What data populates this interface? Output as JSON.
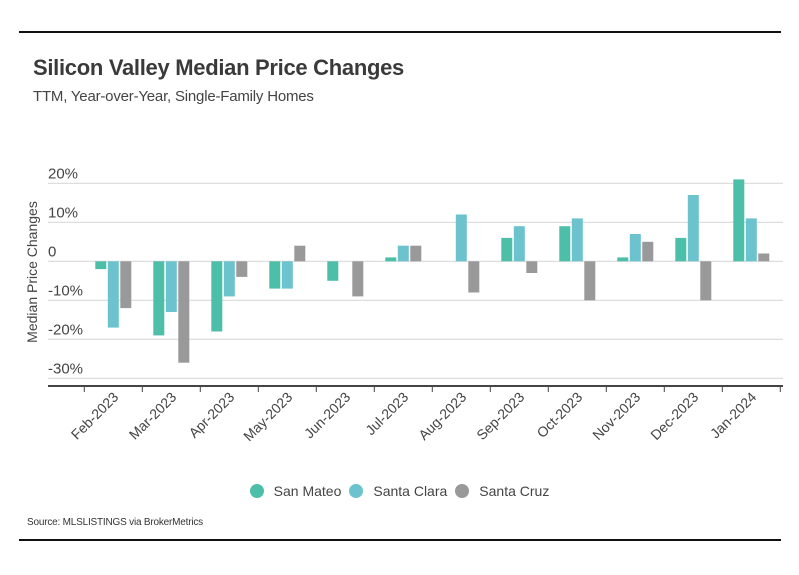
{
  "header": {
    "title": "Silicon Valley Median Price Changes",
    "subtitle": "TTM, Year-over-Year, Single-Family Homes"
  },
  "footer": {
    "source": "Source:  MLSLISTINGS via BrokerMetrics"
  },
  "chart_data": {
    "type": "bar",
    "title": "Silicon Valley Median Price Changes",
    "subtitle": "TTM, Year-over-Year, Single-Family Homes",
    "xlabel": "",
    "ylabel": "Median Price Changes",
    "ylim": [
      -30,
      20
    ],
    "yticks": [
      20,
      10,
      0,
      -10,
      -20,
      -30
    ],
    "ytick_labels": [
      "20%",
      "10%",
      "0",
      "-10%",
      "-20%",
      "-30%"
    ],
    "grid": true,
    "legend_position": "bottom",
    "categories": [
      "Feb-2023",
      "Mar-2023",
      "Apr-2023",
      "May-2023",
      "Jun-2023",
      "Jul-2023",
      "Aug-2023",
      "Sep-2023",
      "Oct-2023",
      "Nov-2023",
      "Dec-2023",
      "Jan-2024"
    ],
    "series": [
      {
        "name": "San Mateo",
        "color": "#4DBFA9",
        "values": [
          -2,
          -19,
          -18,
          -7,
          -5,
          1,
          0,
          6,
          9,
          1,
          6,
          21
        ]
      },
      {
        "name": "Santa Clara",
        "color": "#6CC3CD",
        "values": [
          -17,
          -13,
          -9,
          -7,
          0,
          4,
          12,
          9,
          11,
          7,
          17,
          11
        ]
      },
      {
        "name": "Santa Cruz",
        "color": "#999999",
        "values": [
          -12,
          -26,
          -4,
          4,
          -9,
          4,
          -8,
          -3,
          -10,
          5,
          -10,
          2
        ]
      }
    ]
  }
}
